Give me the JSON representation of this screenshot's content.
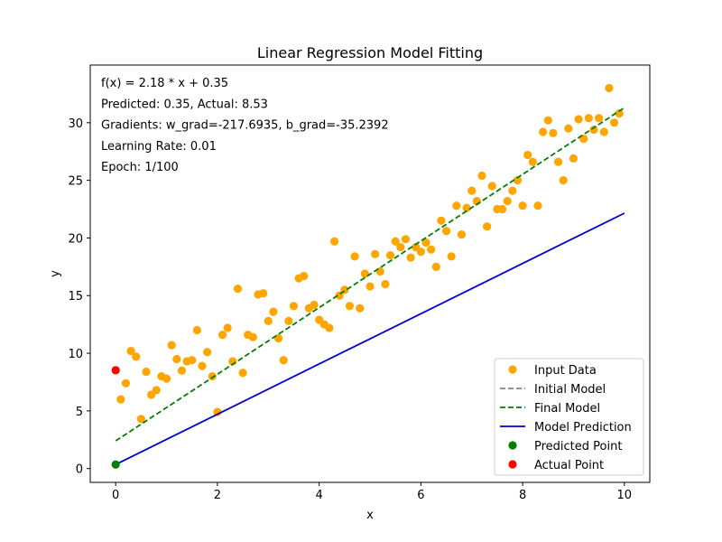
{
  "chart_data": {
    "type": "scatter",
    "title": "Linear Regression Model Fitting",
    "xlabel": "x",
    "ylabel": "y",
    "xlim": [
      -0.5,
      10.5
    ],
    "ylim": [
      -1.2,
      35.0
    ],
    "x_ticks": [
      0,
      2,
      4,
      6,
      8,
      10
    ],
    "y_ticks": [
      0,
      5,
      10,
      15,
      20,
      25,
      30
    ],
    "grid": false,
    "legend_position": "bottom-right",
    "annotations": [
      "f(x) = 2.18 * x + 0.35",
      "Predicted: 0.35, Actual: 8.53",
      "Gradients: w_grad=-217.6935, b_grad=-35.2392",
      "Learning Rate: 0.01",
      "Epoch: 1/100"
    ],
    "series": [
      {
        "name": "Input Data",
        "kind": "scatter",
        "color": "#ffa500",
        "points": [
          [
            0.1,
            6.0
          ],
          [
            0.2,
            7.4
          ],
          [
            0.3,
            10.2
          ],
          [
            0.4,
            9.7
          ],
          [
            0.5,
            4.3
          ],
          [
            0.6,
            8.4
          ],
          [
            0.7,
            6.4
          ],
          [
            0.8,
            6.8
          ],
          [
            0.9,
            8.0
          ],
          [
            1.0,
            7.8
          ],
          [
            1.1,
            10.7
          ],
          [
            1.2,
            9.5
          ],
          [
            1.3,
            8.5
          ],
          [
            1.4,
            9.3
          ],
          [
            1.5,
            9.4
          ],
          [
            1.6,
            12.0
          ],
          [
            1.7,
            8.9
          ],
          [
            1.8,
            10.1
          ],
          [
            1.9,
            8.0
          ],
          [
            2.0,
            4.9
          ],
          [
            2.1,
            11.6
          ],
          [
            2.2,
            12.2
          ],
          [
            2.3,
            9.3
          ],
          [
            2.4,
            15.6
          ],
          [
            2.5,
            8.3
          ],
          [
            2.6,
            11.6
          ],
          [
            2.7,
            11.4
          ],
          [
            2.8,
            15.1
          ],
          [
            2.9,
            15.2
          ],
          [
            3.0,
            12.8
          ],
          [
            3.1,
            13.6
          ],
          [
            3.2,
            11.3
          ],
          [
            3.3,
            9.4
          ],
          [
            3.4,
            12.8
          ],
          [
            3.5,
            14.1
          ],
          [
            3.6,
            16.5
          ],
          [
            3.7,
            16.7
          ],
          [
            3.8,
            13.9
          ],
          [
            3.9,
            14.2
          ],
          [
            4.0,
            12.9
          ],
          [
            4.1,
            12.5
          ],
          [
            4.2,
            12.2
          ],
          [
            4.3,
            19.7
          ],
          [
            4.4,
            15.0
          ],
          [
            4.5,
            15.5
          ],
          [
            4.6,
            14.1
          ],
          [
            4.7,
            18.4
          ],
          [
            4.8,
            13.9
          ],
          [
            4.9,
            16.9
          ],
          [
            5.0,
            15.8
          ],
          [
            5.1,
            18.6
          ],
          [
            5.2,
            17.1
          ],
          [
            5.3,
            16.0
          ],
          [
            5.4,
            18.5
          ],
          [
            5.5,
            19.7
          ],
          [
            5.6,
            19.2
          ],
          [
            5.7,
            19.9
          ],
          [
            5.8,
            18.3
          ],
          [
            5.9,
            19.2
          ],
          [
            6.0,
            18.8
          ],
          [
            6.1,
            19.6
          ],
          [
            6.2,
            19.0
          ],
          [
            6.3,
            17.5
          ],
          [
            6.4,
            21.5
          ],
          [
            6.5,
            20.6
          ],
          [
            6.6,
            18.4
          ],
          [
            6.7,
            22.8
          ],
          [
            6.8,
            20.3
          ],
          [
            6.9,
            22.6
          ],
          [
            7.0,
            24.1
          ],
          [
            7.1,
            23.2
          ],
          [
            7.2,
            25.4
          ],
          [
            7.3,
            21.0
          ],
          [
            7.4,
            24.5
          ],
          [
            7.5,
            22.5
          ],
          [
            7.6,
            22.5
          ],
          [
            7.7,
            23.2
          ],
          [
            7.8,
            24.1
          ],
          [
            7.9,
            25.0
          ],
          [
            8.0,
            22.8
          ],
          [
            8.1,
            27.2
          ],
          [
            8.2,
            26.6
          ],
          [
            8.3,
            22.8
          ],
          [
            8.4,
            29.2
          ],
          [
            8.5,
            30.2
          ],
          [
            8.6,
            29.1
          ],
          [
            8.7,
            26.6
          ],
          [
            8.8,
            25.0
          ],
          [
            8.9,
            29.5
          ],
          [
            9.0,
            26.9
          ],
          [
            9.1,
            30.3
          ],
          [
            9.2,
            28.6
          ],
          [
            9.3,
            30.4
          ],
          [
            9.4,
            29.4
          ],
          [
            9.5,
            30.4
          ],
          [
            9.6,
            29.2
          ],
          [
            9.7,
            33.0
          ],
          [
            9.8,
            30.0
          ],
          [
            9.9,
            30.8
          ]
        ]
      },
      {
        "name": "Initial Model",
        "kind": "line",
        "color": "#808080",
        "dash": true,
        "points": []
      },
      {
        "name": "Final Model",
        "kind": "line",
        "color": "#008000",
        "dash": true,
        "points": [
          [
            0,
            2.4
          ],
          [
            10,
            31.3
          ]
        ]
      },
      {
        "name": "Model Prediction",
        "kind": "line",
        "color": "#0000cc",
        "dash": false,
        "points": [
          [
            0,
            0.35
          ],
          [
            10,
            22.15
          ]
        ]
      },
      {
        "name": "Predicted Point",
        "kind": "point",
        "color": "#008000",
        "points": [
          [
            0,
            0.35
          ]
        ]
      },
      {
        "name": "Actual Point",
        "kind": "point",
        "color": "#ff0000",
        "points": [
          [
            0,
            8.53
          ]
        ]
      }
    ]
  }
}
